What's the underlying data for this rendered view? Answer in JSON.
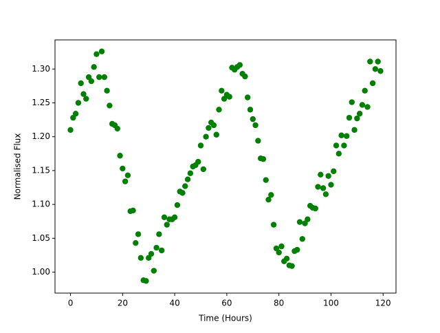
{
  "chart_data": {
    "type": "scatter",
    "xlabel": "Time (Hours)",
    "ylabel": "Normalised Flux",
    "color": "#008000",
    "x": [
      0,
      1,
      2,
      3,
      4,
      5,
      6,
      7,
      8,
      9,
      10,
      11,
      12,
      13,
      14,
      15,
      16,
      17,
      18,
      19,
      20,
      21,
      22,
      23,
      24,
      25,
      26,
      27,
      28,
      29,
      30,
      31,
      32,
      33,
      34,
      35,
      36,
      37,
      38,
      39,
      40,
      41,
      42,
      43,
      44,
      45,
      46,
      47,
      48,
      49,
      50,
      51,
      52,
      53,
      54,
      55,
      56,
      57,
      58,
      59,
      60,
      61,
      62,
      63,
      64,
      65,
      66,
      67,
      68,
      69,
      70,
      71,
      72,
      73,
      74,
      75,
      76,
      77,
      78,
      79,
      80,
      81,
      82,
      83,
      84,
      85,
      86,
      87,
      88,
      89,
      90,
      91,
      92,
      93,
      94,
      95,
      96,
      97,
      98,
      99,
      100,
      101,
      102,
      103,
      104,
      105,
      106,
      107,
      108,
      109,
      110,
      111,
      112,
      113,
      114,
      115,
      116,
      117,
      118,
      119
    ],
    "values": [
      1.21,
      1.228,
      1.234,
      1.25,
      1.279,
      1.263,
      1.256,
      1.288,
      1.282,
      1.303,
      1.322,
      1.288,
      1.326,
      1.288,
      1.268,
      1.246,
      1.219,
      1.217,
      1.212,
      1.172,
      1.153,
      1.134,
      1.143,
      1.09,
      1.091,
      1.043,
      1.056,
      1.021,
      0.988,
      0.987,
      1.021,
      1.027,
      1.002,
      1.036,
      1.056,
      1.032,
      1.081,
      1.07,
      1.078,
      1.078,
      1.081,
      1.099,
      1.119,
      1.117,
      1.127,
      1.137,
      1.146,
      1.156,
      1.158,
      1.163,
      1.187,
      1.152,
      1.2,
      1.213,
      1.221,
      1.217,
      1.203,
      1.24,
      1.268,
      1.256,
      1.262,
      1.259,
      1.302,
      1.299,
      1.303,
      1.306,
      1.293,
      1.289,
      1.258,
      1.24,
      1.226,
      1.217,
      1.194,
      1.168,
      1.167,
      1.136,
      1.107,
      1.114,
      1.07,
      1.035,
      1.029,
      1.038,
      1.016,
      1.02,
      1.01,
      1.009,
      1.031,
      1.033,
      1.074,
      1.049,
      1.072,
      1.078,
      1.098,
      1.095,
      1.094,
      1.126,
      1.144,
      1.124,
      1.115,
      1.142,
      1.129,
      1.149,
      1.187,
      1.175,
      1.202,
      1.187,
      1.201,
      1.228,
      1.251,
      1.21,
      1.227,
      1.234,
      1.247,
      1.268,
      1.244,
      1.311,
      1.279,
      1.3,
      1.311,
      1.297
    ],
    "xlim": [
      -5.95,
      124.95
    ],
    "xticks": [
      0,
      20,
      40,
      60,
      80,
      100,
      120
    ],
    "ylim": [
      0.969,
      1.343
    ],
    "yticks": [
      {
        "value": 1,
        "label": "1.00"
      },
      1.05,
      {
        "value": 1.1,
        "label": "1.10"
      },
      1.15,
      {
        "value": 1.2,
        "label": "1.20"
      },
      1.25,
      {
        "value": 1.3,
        "label": "1.30"
      }
    ]
  }
}
